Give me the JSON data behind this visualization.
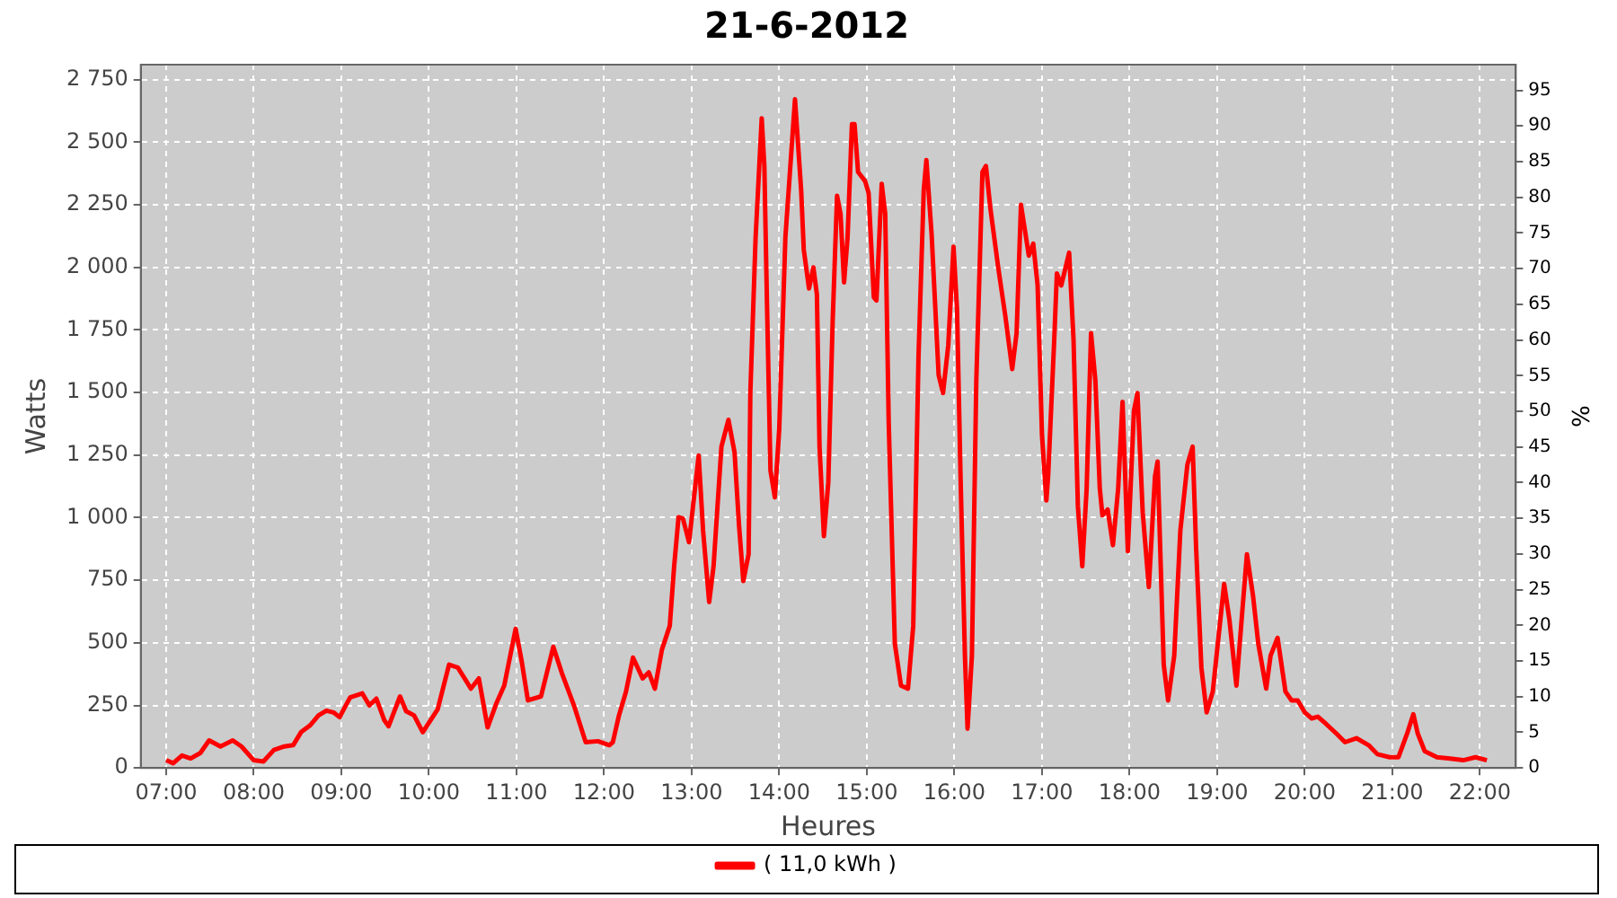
{
  "chart_data": {
    "type": "line",
    "title": "21-6-2012",
    "xlabel": "Heures",
    "ylabel": "Watts",
    "y2label": "%",
    "xlim": [
      6.71,
      22.41
    ],
    "xticks": [
      {
        "value": 7,
        "label": "07:00"
      },
      {
        "value": 8,
        "label": "08:00"
      },
      {
        "value": 9,
        "label": "09:00"
      },
      {
        "value": 10,
        "label": "10:00"
      },
      {
        "value": 11,
        "label": "11:00"
      },
      {
        "value": 12,
        "label": "12:00"
      },
      {
        "value": 13,
        "label": "13:00"
      },
      {
        "value": 14,
        "label": "14:00"
      },
      {
        "value": 15,
        "label": "15:00"
      },
      {
        "value": 16,
        "label": "16:00"
      },
      {
        "value": 17,
        "label": "17:00"
      },
      {
        "value": 18,
        "label": "18:00"
      },
      {
        "value": 19,
        "label": "19:00"
      },
      {
        "value": 20,
        "label": "20:00"
      },
      {
        "value": 21,
        "label": "21:00"
      },
      {
        "value": 22,
        "label": "22:00"
      }
    ],
    "ylim": [
      0,
      2810
    ],
    "yticks": [
      0,
      250,
      500,
      750,
      {
        "value": 1000,
        "label": "1 000"
      },
      {
        "value": 1250,
        "label": "1 250"
      },
      {
        "value": 1500,
        "label": "1 500"
      },
      {
        "value": 1750,
        "label": "1 750"
      },
      {
        "value": 2000,
        "label": "2 000"
      },
      {
        "value": 2250,
        "label": "2 250"
      },
      {
        "value": 2500,
        "label": "2 500"
      },
      {
        "value": 2750,
        "label": "2 750"
      }
    ],
    "y2lim": [
      0,
      98.6
    ],
    "y2ticks": [
      0,
      5,
      10,
      15,
      20,
      25,
      30,
      35,
      40,
      45,
      50,
      55,
      60,
      65,
      70,
      75,
      80,
      85,
      90,
      95
    ],
    "grid": true,
    "legend": "bottom",
    "marker": "none",
    "series": [
      {
        "name": "( 11,0 kWh )",
        "color": "#ff0000",
        "x": [
          7.0,
          7.08,
          7.18,
          7.28,
          7.39,
          7.49,
          7.62,
          7.76,
          7.86,
          8.0,
          8.11,
          8.23,
          8.35,
          8.45,
          8.54,
          8.64,
          8.74,
          8.83,
          8.91,
          8.98,
          9.1,
          9.24,
          9.32,
          9.4,
          9.49,
          9.54,
          9.67,
          9.74,
          9.83,
          9.93,
          10.1,
          10.23,
          10.33,
          10.48,
          10.57,
          10.67,
          10.77,
          10.86,
          10.99,
          11.06,
          11.13,
          11.28,
          11.42,
          11.52,
          11.66,
          11.79,
          11.93,
          12.06,
          12.1,
          12.17,
          12.25,
          12.33,
          12.44,
          12.51,
          12.58,
          12.66,
          12.75,
          12.8,
          12.85,
          12.9,
          12.97,
          13.08,
          13.13,
          13.2,
          13.25,
          13.34,
          13.42,
          13.49,
          13.54,
          13.59,
          13.65,
          13.67,
          13.73,
          13.8,
          13.83,
          13.86,
          13.9,
          13.95,
          14.0,
          14.07,
          14.18,
          14.25,
          14.28,
          14.34,
          14.39,
          14.43,
          14.46,
          14.51,
          14.56,
          14.61,
          14.66,
          14.7,
          14.74,
          14.78,
          14.83,
          14.86,
          14.9,
          14.98,
          15.02,
          15.08,
          15.11,
          15.17,
          15.21,
          15.25,
          15.32,
          15.39,
          15.47,
          15.53,
          15.59,
          15.65,
          15.68,
          15.74,
          15.82,
          15.87,
          15.93,
          15.99,
          16.03,
          16.07,
          16.12,
          16.15,
          16.2,
          16.25,
          16.32,
          16.36,
          16.41,
          16.5,
          16.58,
          16.66,
          16.71,
          16.76,
          16.85,
          16.9,
          16.95,
          17.0,
          17.05,
          17.07,
          17.14,
          17.17,
          17.22,
          17.31,
          17.36,
          17.41,
          17.46,
          17.51,
          17.56,
          17.61,
          17.66,
          17.69,
          17.75,
          17.81,
          17.87,
          17.92,
          17.98,
          18.05,
          18.09,
          18.15,
          18.22,
          18.29,
          18.32,
          18.39,
          18.44,
          18.51,
          18.58,
          18.66,
          18.72,
          18.76,
          18.82,
          18.88,
          18.95,
          19.0,
          19.08,
          19.14,
          19.22,
          19.29,
          19.34,
          19.41,
          19.47,
          19.56,
          19.61,
          19.69,
          19.78,
          19.85,
          19.92,
          20.0,
          20.08,
          20.15,
          20.25,
          20.36,
          20.46,
          20.59,
          20.73,
          20.83,
          20.97,
          21.07,
          21.17,
          21.24,
          21.29,
          21.37,
          21.51,
          21.64,
          21.81,
          21.95,
          22.08
        ],
        "values": [
          31,
          19,
          50,
          38,
          60,
          110,
          86,
          110,
          86,
          31,
          26,
          72,
          86,
          91,
          143,
          169,
          210,
          229,
          222,
          203,
          282,
          298,
          250,
          277,
          191,
          167,
          286,
          227,
          210,
          143,
          234,
          413,
          401,
          317,
          358,
          162,
          258,
          329,
          556,
          425,
          270,
          286,
          484,
          377,
          246,
          103,
          107,
          91,
          103,
          210,
          305,
          441,
          358,
          382,
          317,
          472,
          568,
          806,
          1002,
          997,
          902,
          1248,
          950,
          663,
          806,
          1284,
          1391,
          1260,
          973,
          747,
          854,
          1498,
          2119,
          2596,
          2405,
          1856,
          1188,
          1081,
          1355,
          2119,
          2672,
          2310,
          2071,
          1916,
          2000,
          1892,
          1284,
          926,
          1141,
          1785,
          2286,
          2214,
          1940,
          2119,
          2572,
          2572,
          2381,
          2345,
          2298,
          1880,
          1868,
          2334,
          2214,
          1379,
          496,
          329,
          317,
          568,
          1642,
          2310,
          2429,
          2131,
          1570,
          1498,
          1689,
          2083,
          1832,
          1164,
          449,
          157,
          449,
          1546,
          2381,
          2405,
          2238,
          2000,
          1809,
          1594,
          1737,
          2250,
          2047,
          2095,
          1928,
          1331,
          1069,
          1164,
          1713,
          1976,
          1928,
          2059,
          1713,
          1045,
          806,
          1117,
          1737,
          1546,
          1117,
          1009,
          1033,
          890,
          1117,
          1463,
          866,
          1427,
          1498,
          1021,
          723,
          1164,
          1224,
          413,
          270,
          449,
          950,
          1212,
          1284,
          878,
          401,
          222,
          305,
          472,
          735,
          592,
          329,
          639,
          854,
          687,
          496,
          317,
          449,
          520,
          305,
          270,
          270,
          222,
          198,
          205,
          174,
          138,
          103,
          119,
          91,
          55,
          43,
          43,
          138,
          215,
          138,
          67,
          43,
          38,
          31,
          43,
          31
        ]
      }
    ]
  }
}
